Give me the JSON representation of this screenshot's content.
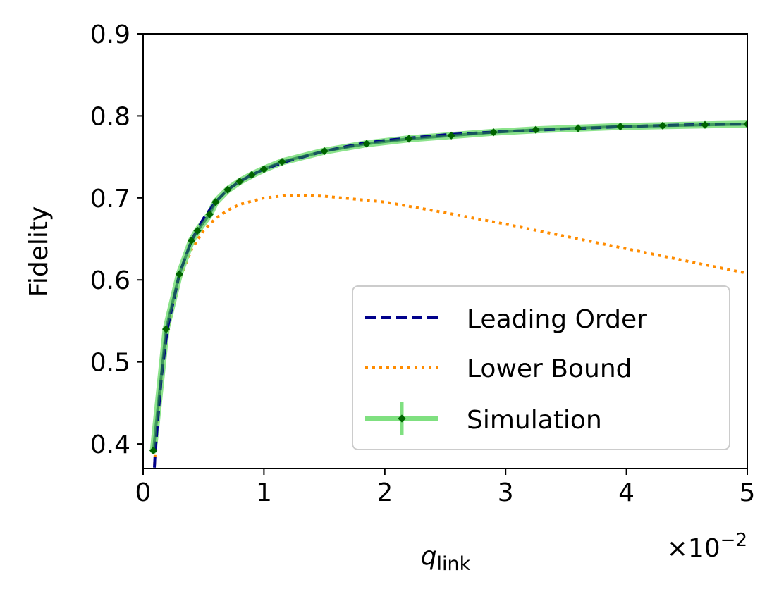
{
  "chart_data": {
    "type": "line",
    "xlabel_base": "q",
    "xlabel_sub": "link",
    "ylabel": "Fidelity",
    "x_scale_prefix": "×10",
    "x_scale_exponent": "−2",
    "xlim": [
      0,
      5
    ],
    "ylim": [
      0.37,
      0.9
    ],
    "xticks": [
      0,
      1,
      2,
      3,
      4,
      5
    ],
    "xtick_labels": [
      "0",
      "1",
      "2",
      "3",
      "4",
      "5"
    ],
    "yticks": [
      0.4,
      0.5,
      0.6,
      0.7,
      0.8,
      0.9
    ],
    "ytick_labels": [
      "0.4",
      "0.5",
      "0.6",
      "0.7",
      "0.8",
      "0.9"
    ],
    "grid": false,
    "legend_position": "lower-right",
    "series": [
      {
        "name": "Leading Order",
        "style": "dashed",
        "color": "#00008b",
        "x": [
          0.05,
          0.08,
          0.1,
          0.15,
          0.2,
          0.3,
          0.4,
          0.5,
          0.6,
          0.7,
          0.8,
          0.9,
          1.0,
          1.2,
          1.5,
          1.8,
          2.0,
          2.5,
          3.0,
          3.5,
          4.0,
          4.5,
          5.0
        ],
        "y": [
          0.22,
          0.33,
          0.39,
          0.48,
          0.54,
          0.607,
          0.648,
          0.675,
          0.695,
          0.71,
          0.72,
          0.728,
          0.735,
          0.745,
          0.757,
          0.766,
          0.77,
          0.777,
          0.781,
          0.784,
          0.787,
          0.789,
          0.79
        ]
      },
      {
        "name": "Lower Bound",
        "style": "dotted",
        "color": "#ff8c00",
        "x": [
          0.05,
          0.08,
          0.1,
          0.15,
          0.2,
          0.3,
          0.4,
          0.5,
          0.6,
          0.7,
          0.8,
          1.0,
          1.2,
          1.35,
          1.5,
          2.0,
          2.5,
          3.0,
          3.5,
          4.0,
          4.5,
          5.0
        ],
        "y": [
          0.22,
          0.33,
          0.39,
          0.48,
          0.535,
          0.6,
          0.637,
          0.66,
          0.675,
          0.685,
          0.692,
          0.7,
          0.703,
          0.703,
          0.702,
          0.695,
          0.682,
          0.668,
          0.653,
          0.638,
          0.623,
          0.608
        ]
      },
      {
        "name": "Simulation",
        "style": "solid-with-markers",
        "color": "#7fe080",
        "marker_color": "#006400",
        "x": [
          0.085,
          0.19,
          0.3,
          0.4,
          0.45,
          0.55,
          0.6,
          0.7,
          0.8,
          0.9,
          1.0,
          1.15,
          1.5,
          1.85,
          2.2,
          2.55,
          2.9,
          3.25,
          3.6,
          3.95,
          4.3,
          4.65,
          5.0
        ],
        "y": [
          0.392,
          0.54,
          0.607,
          0.648,
          0.66,
          0.68,
          0.695,
          0.71,
          0.72,
          0.728,
          0.735,
          0.744,
          0.757,
          0.766,
          0.772,
          0.776,
          0.78,
          0.783,
          0.785,
          0.787,
          0.788,
          0.789,
          0.79
        ]
      }
    ]
  }
}
